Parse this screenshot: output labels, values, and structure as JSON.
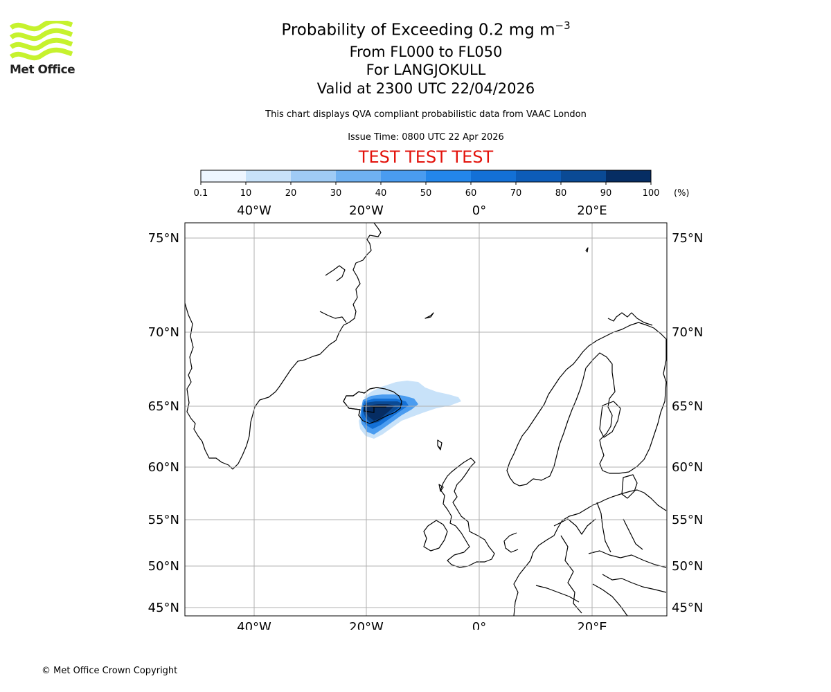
{
  "logo": {
    "text": "Met Office",
    "colors": {
      "waves": "#c6f22e"
    }
  },
  "header": {
    "title_main": "Probability of Exceeding 0.2 mg m",
    "title_exponent": "−3",
    "flight_levels": "From FL000 to FL050",
    "location": "For LANGJOKULL",
    "valid_time": "Valid at 2300 UTC 22/04/2026",
    "note": "This chart displays QVA compliant probabilistic data from VAAC London",
    "issue_time": "Issue Time: 0800 UTC 22 Apr 2026",
    "test_banner": "TEST TEST TEST",
    "test_color": "#e3120b"
  },
  "colorbar": {
    "ticks": [
      "0.1",
      "10",
      "20",
      "30",
      "40",
      "50",
      "60",
      "70",
      "80",
      "90",
      "100"
    ],
    "unit": "(%)",
    "colors": [
      "#eef6ff",
      "#c8e2f9",
      "#9fcbf5",
      "#6fb1f1",
      "#4a9cf0",
      "#2386ea",
      "#1370d6",
      "#0d5cb8",
      "#0a4a95",
      "#062d63"
    ]
  },
  "map": {
    "lon_labels": [
      "40°W",
      "20°W",
      "0°",
      "20°E"
    ],
    "lat_labels": [
      "75°N",
      "70°N",
      "65°N",
      "60°N",
      "55°N",
      "50°N",
      "45°N"
    ],
    "plume_levels": [
      {
        "probability": 10,
        "color": "#c8e2f9"
      },
      {
        "probability": 40,
        "color": "#4a9cf0"
      },
      {
        "probability": 60,
        "color": "#1370d6"
      },
      {
        "probability": 80,
        "color": "#0a4a95"
      },
      {
        "probability": 95,
        "color": "#062d63"
      }
    ]
  },
  "footer": {
    "copyright": "© Met Office Crown Copyright"
  }
}
